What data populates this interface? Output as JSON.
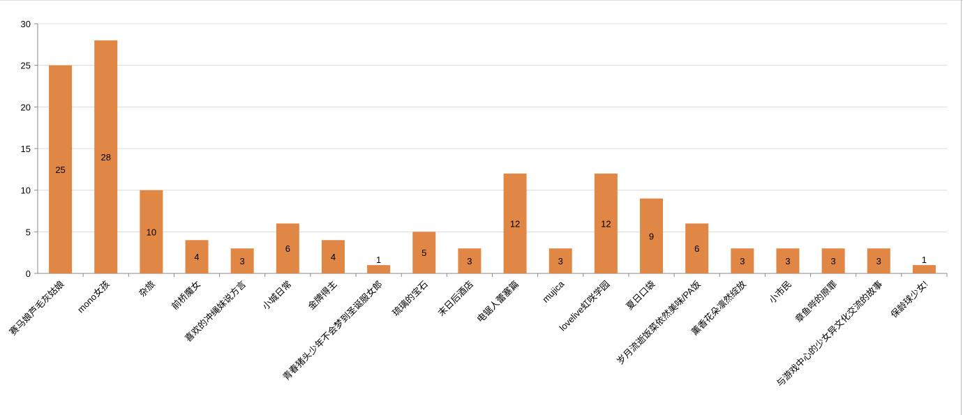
{
  "chart_data": {
    "type": "bar",
    "title": "",
    "xlabel": "",
    "ylabel": "",
    "ylim": [
      0,
      30
    ],
    "yticks": [
      0,
      5,
      10,
      15,
      20,
      25,
      30
    ],
    "grid": true,
    "bar_color": "#E08746",
    "categories": [
      "赛马娘芦毛灰姑娘",
      "mono女孩",
      "杂旅",
      "前桥魔女",
      "喜欢的冲绳妹说方言",
      "小城日常",
      "金牌得主",
      "青春猪头少年不会梦到圣诞服女郎",
      "琉璃的宝石",
      "末日后酒店",
      "电锯人蕾塞篇",
      "mujica",
      "lovelive虹咲学园",
      "夏日口袋",
      "岁月流逝饭菜依然美味/PA饭",
      "薰香花朵凛然绽放",
      "小市民",
      "章鱼哔的原罪",
      "与游戏中心的少女异文化交流的故事",
      "保龄球少女!"
    ],
    "values": [
      25,
      28,
      10,
      4,
      3,
      6,
      4,
      1,
      5,
      3,
      12,
      3,
      12,
      9,
      6,
      3,
      3,
      3,
      3,
      1
    ]
  }
}
